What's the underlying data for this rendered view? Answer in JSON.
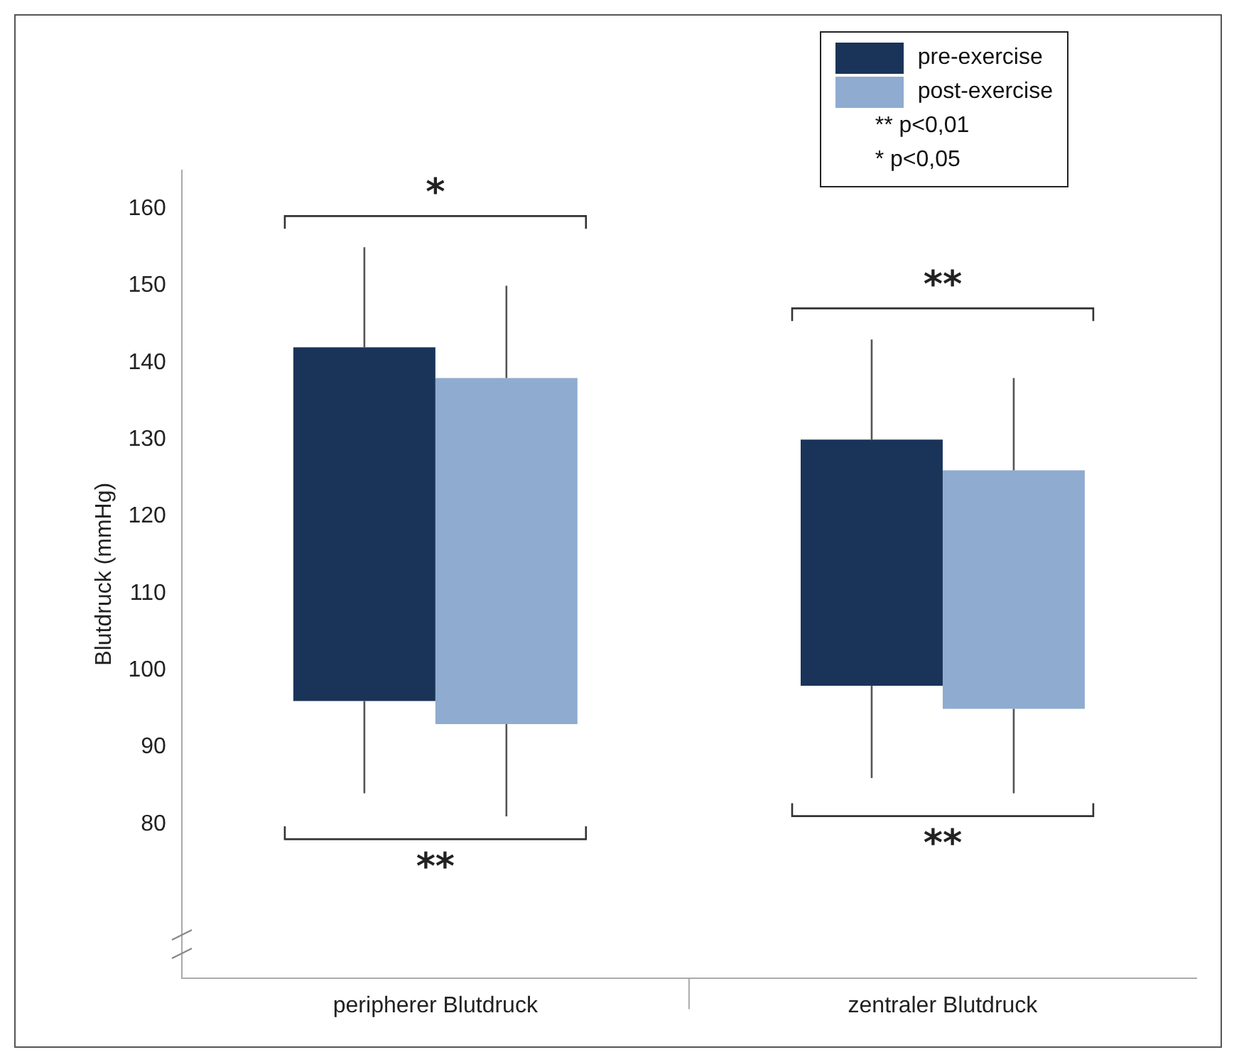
{
  "chart_data": {
    "type": "bar",
    "ylabel": "Blutdruck (mmHg)",
    "categories": [
      "peripherer Blutdruck",
      "zentraler Blutdruck"
    ],
    "series": [
      {
        "name": "pre-exercise",
        "color": "#1a3459",
        "base": [
          96,
          98
        ],
        "values": [
          46,
          32
        ],
        "errors": [
          [
            84,
            155
          ],
          [
            86,
            143
          ]
        ]
      },
      {
        "name": "post-exercise",
        "color": "#8fabd0",
        "base": [
          93,
          95
        ],
        "values": [
          45,
          31
        ],
        "errors": [
          [
            81,
            150
          ],
          [
            84,
            138
          ]
        ]
      }
    ],
    "ylim": [
      60,
      165
    ],
    "yticks": [
      80,
      90,
      100,
      110,
      120,
      130,
      140,
      150,
      160
    ],
    "grid": false,
    "legend": "top right",
    "annotations": [
      "*",
      "**",
      "**",
      "**",
      "** p<0,01",
      "* p<0,05"
    ]
  }
}
